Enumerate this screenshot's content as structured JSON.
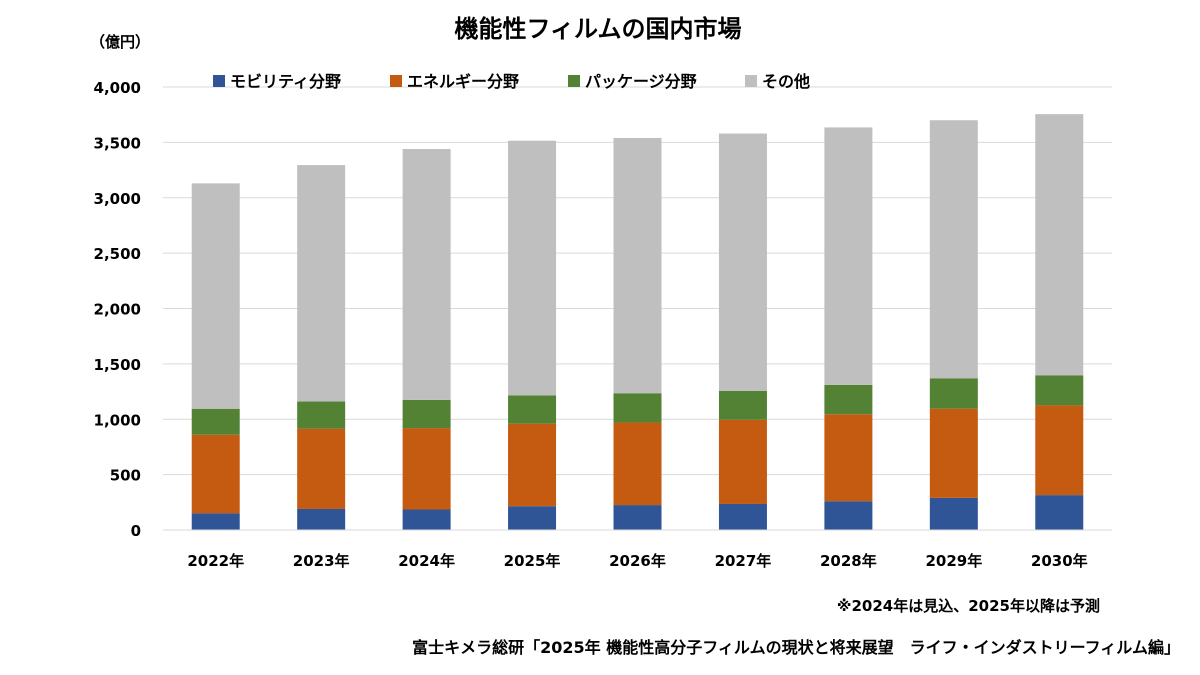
{
  "chart_data": {
    "type": "bar",
    "stacked": true,
    "title": "機能性フィルムの国内市場",
    "unit_label": "（億円）",
    "categories": [
      "2022年",
      "2023年",
      "2024年",
      "2025年",
      "2026年",
      "2027年",
      "2028年",
      "2029年",
      "2030年"
    ],
    "series": [
      {
        "name": "モビリティ分野",
        "color": "#2F5597",
        "values": [
          150,
          190,
          185,
          215,
          225,
          235,
          260,
          290,
          315
        ]
      },
      {
        "name": "エネルギー分野",
        "color": "#C55A11",
        "values": [
          710,
          725,
          735,
          745,
          745,
          760,
          785,
          805,
          810
        ]
      },
      {
        "name": "パッケージ分野",
        "color": "#548235",
        "values": [
          235,
          245,
          255,
          255,
          265,
          260,
          265,
          275,
          270
        ]
      },
      {
        "name": "その他",
        "color": "#BFBFBF",
        "values": [
          2035,
          2135,
          2265,
          2300,
          2305,
          2325,
          2325,
          2330,
          2360
        ]
      }
    ],
    "ylim": [
      0,
      4000
    ],
    "yticks": [
      "0",
      "500",
      "1,000",
      "1,500",
      "2,000",
      "2,500",
      "3,000",
      "3,500",
      "4,000"
    ],
    "ytick_values": [
      0,
      500,
      1000,
      1500,
      2000,
      2500,
      3000,
      3500,
      4000
    ],
    "grid": true,
    "legend_position": "top",
    "note": "※2024年は見込、2025年以降は予測",
    "source": "富士キメラ総研「2025年 機能性高分子フィルムの現状と将来展望　ライフ・インダストリーフィルム編」"
  }
}
